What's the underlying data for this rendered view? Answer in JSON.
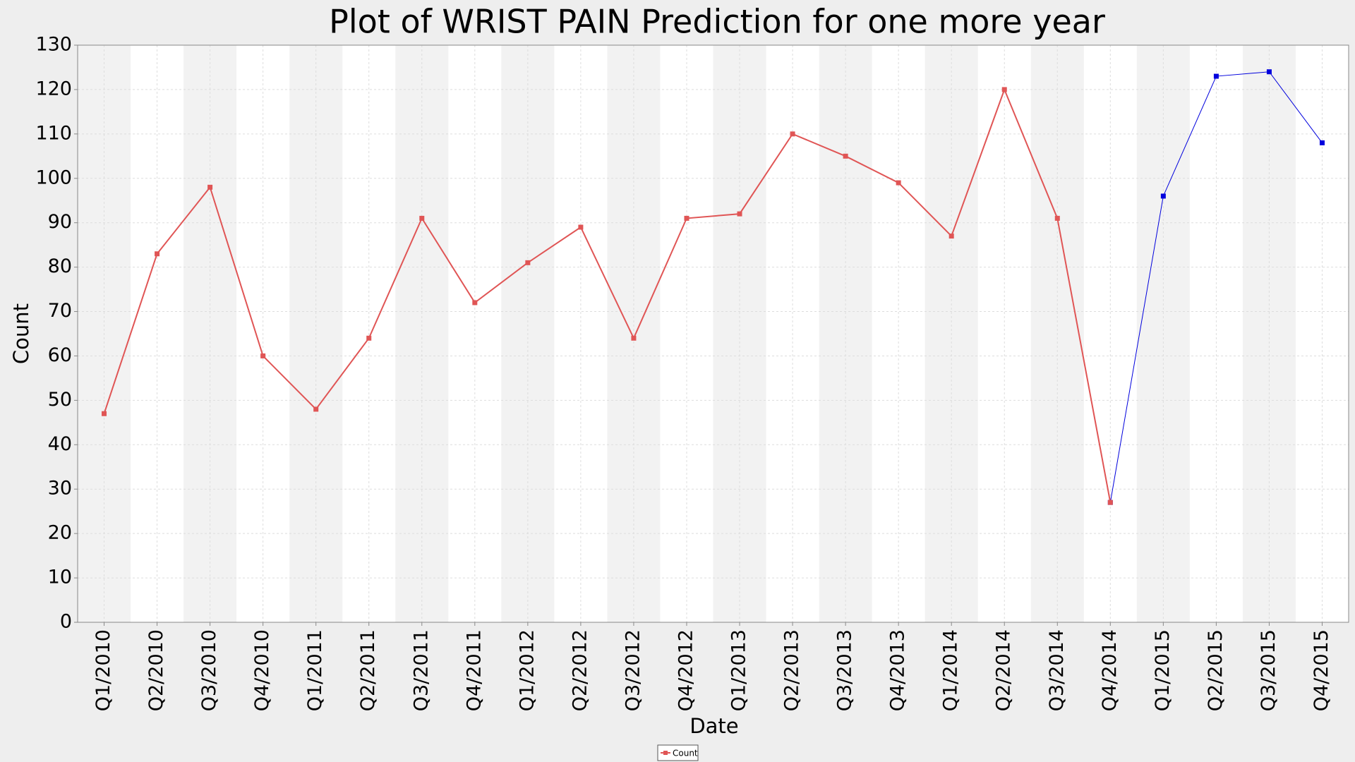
{
  "chart_data": {
    "type": "line",
    "title": "Plot of WRIST PAIN Prediction for one more year",
    "x_label": "Date",
    "y_label": "Count",
    "categories": [
      "Q1/2010",
      "Q2/2010",
      "Q3/2010",
      "Q4/2010",
      "Q1/2011",
      "Q2/2011",
      "Q3/2011",
      "Q4/2011",
      "Q1/2012",
      "Q2/2012",
      "Q3/2012",
      "Q4/2012",
      "Q1/2013",
      "Q2/2013",
      "Q3/2013",
      "Q4/2013",
      "Q1/2014",
      "Q2/2014",
      "Q3/2014",
      "Q4/2014",
      "Q1/2015",
      "Q2/2015",
      "Q3/2015",
      "Q4/2015"
    ],
    "series": [
      {
        "name": "Count",
        "color": "#e05555",
        "values": [
          47,
          83,
          98,
          60,
          48,
          64,
          91,
          72,
          81,
          89,
          64,
          91,
          92,
          110,
          105,
          99,
          87,
          120,
          91,
          27,
          null,
          null,
          null,
          null
        ]
      },
      {
        "color": "#0000dd",
        "values": [
          null,
          null,
          null,
          null,
          null,
          null,
          null,
          null,
          null,
          null,
          null,
          null,
          null,
          null,
          null,
          null,
          null,
          null,
          null,
          27,
          96,
          123,
          124,
          108
        ]
      }
    ],
    "ylim": [
      0,
      130
    ],
    "yticks": [
      0,
      10,
      20,
      30,
      40,
      50,
      60,
      70,
      80,
      90,
      100,
      110,
      120,
      130
    ],
    "grid": true
  }
}
